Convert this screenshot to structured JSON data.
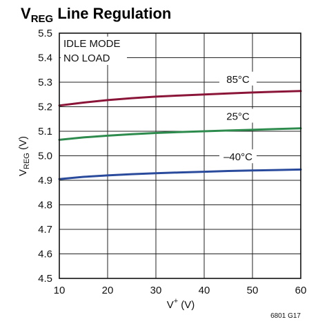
{
  "title": {
    "main": "V",
    "sub": "REG",
    "rest": " Line Regulation"
  },
  "figure_id": "6801 G17",
  "annotation": {
    "line1": "IDLE MODE",
    "line2": "NO LOAD"
  },
  "chart_data": {
    "type": "line",
    "title": "VREG Line Regulation",
    "xlabel": {
      "main": "V",
      "sup": "+",
      "rest": " (V)"
    },
    "ylabel": {
      "main": "V",
      "sub": "REG",
      "rest": " (V)"
    },
    "xlim": [
      10,
      60
    ],
    "ylim": [
      4.5,
      5.5
    ],
    "xticks": [
      10,
      20,
      30,
      40,
      50,
      60
    ],
    "yticks": [
      4.5,
      4.6,
      4.7,
      4.8,
      4.9,
      5.0,
      5.1,
      5.2,
      5.3,
      5.4,
      5.5
    ],
    "xtick_labels": [
      "10",
      "20",
      "30",
      "40",
      "50",
      "60"
    ],
    "ytick_labels": [
      "4.5",
      "4.6",
      "4.7",
      "4.8",
      "4.9",
      "5.0",
      "5.1",
      "5.2",
      "5.3",
      "5.4",
      "5.5"
    ],
    "grid": true,
    "series": [
      {
        "name": "85°C",
        "color": "#8b1538",
        "x": [
          10,
          15,
          20,
          25,
          30,
          35,
          40,
          45,
          50,
          55,
          60
        ],
        "y": [
          5.205,
          5.217,
          5.227,
          5.235,
          5.241,
          5.246,
          5.25,
          5.254,
          5.258,
          5.261,
          5.264
        ]
      },
      {
        "name": "25°C",
        "color": "#2e8b4e",
        "x": [
          10,
          15,
          20,
          25,
          30,
          35,
          40,
          45,
          50,
          55,
          60
        ],
        "y": [
          5.065,
          5.075,
          5.082,
          5.088,
          5.093,
          5.097,
          5.1,
          5.103,
          5.106,
          5.109,
          5.112
        ]
      },
      {
        "name": "–40°C",
        "color": "#2a4a9c",
        "x": [
          10,
          15,
          20,
          25,
          30,
          35,
          40,
          45,
          50,
          55,
          60
        ],
        "y": [
          4.905,
          4.914,
          4.92,
          4.925,
          4.929,
          4.932,
          4.935,
          4.938,
          4.94,
          4.942,
          4.944
        ]
      }
    ]
  }
}
